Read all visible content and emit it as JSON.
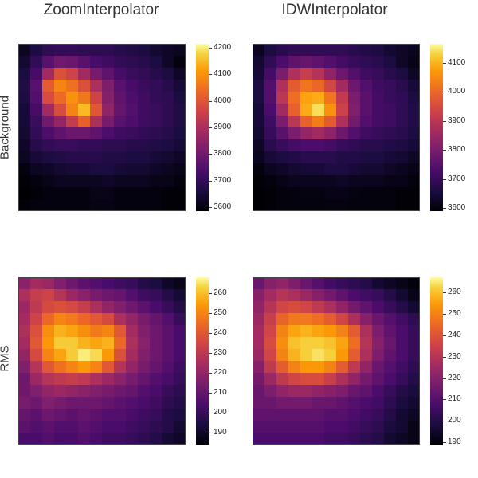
{
  "column_titles": [
    "ZoomInterpolator",
    "IDWInterpolator"
  ],
  "row_labels": [
    "Background",
    "RMS"
  ],
  "chart_data": [
    {
      "type": "heatmap",
      "title": "ZoomInterpolator",
      "ylabel": "Background",
      "colormap": "inferno",
      "colorbar": {
        "range": [
          3585,
          4215
        ],
        "ticks": [
          3600,
          3700,
          3800,
          3900,
          4000,
          4100,
          4200
        ]
      },
      "values": [
        [
          3620,
          3660,
          3690,
          3700,
          3700,
          3690,
          3690,
          3690,
          3680,
          3670,
          3660,
          3640,
          3630,
          3620
        ],
        [
          3640,
          3700,
          3760,
          3800,
          3790,
          3760,
          3730,
          3720,
          3700,
          3690,
          3680,
          3660,
          3630,
          3600
        ],
        [
          3660,
          3730,
          3880,
          3990,
          3960,
          3880,
          3810,
          3770,
          3730,
          3710,
          3700,
          3680,
          3660,
          3630
        ],
        [
          3670,
          3760,
          4010,
          4080,
          4050,
          3990,
          3900,
          3820,
          3760,
          3730,
          3710,
          3700,
          3680,
          3650
        ],
        [
          3660,
          3750,
          3980,
          4040,
          4100,
          4060,
          3960,
          3830,
          3770,
          3740,
          3720,
          3700,
          3690,
          3660
        ],
        [
          3650,
          3730,
          3880,
          3980,
          4080,
          4150,
          4000,
          3850,
          3780,
          3750,
          3720,
          3710,
          3690,
          3670
        ],
        [
          3650,
          3710,
          3800,
          3860,
          3940,
          4020,
          3900,
          3810,
          3760,
          3740,
          3720,
          3710,
          3690,
          3670
        ],
        [
          3640,
          3700,
          3740,
          3770,
          3790,
          3790,
          3770,
          3740,
          3720,
          3710,
          3700,
          3690,
          3680,
          3660
        ],
        [
          3630,
          3680,
          3700,
          3710,
          3710,
          3700,
          3700,
          3690,
          3690,
          3680,
          3680,
          3670,
          3660,
          3650
        ],
        [
          3620,
          3650,
          3660,
          3670,
          3680,
          3680,
          3680,
          3670,
          3670,
          3660,
          3660,
          3650,
          3640,
          3630
        ],
        [
          3600,
          3620,
          3630,
          3640,
          3650,
          3650,
          3660,
          3660,
          3650,
          3640,
          3640,
          3630,
          3620,
          3610
        ],
        [
          3590,
          3600,
          3610,
          3620,
          3620,
          3620,
          3620,
          3630,
          3620,
          3620,
          3620,
          3610,
          3610,
          3600
        ],
        [
          3585,
          3590,
          3600,
          3600,
          3600,
          3600,
          3610,
          3610,
          3600,
          3600,
          3600,
          3600,
          3590,
          3590
        ],
        [
          3590,
          3595,
          3600,
          3600,
          3600,
          3600,
          3605,
          3605,
          3600,
          3600,
          3600,
          3600,
          3590,
          3590
        ]
      ]
    },
    {
      "type": "heatmap",
      "title": "IDWInterpolator",
      "ylabel": "",
      "colormap": "inferno",
      "colorbar": {
        "range": [
          3590,
          4165
        ],
        "ticks": [
          3600,
          3700,
          3800,
          3900,
          4000,
          4100
        ]
      },
      "values": [
        [
          3620,
          3660,
          3680,
          3690,
          3690,
          3690,
          3690,
          3690,
          3680,
          3670,
          3660,
          3640,
          3630,
          3620
        ],
        [
          3640,
          3690,
          3730,
          3760,
          3770,
          3760,
          3740,
          3720,
          3700,
          3690,
          3680,
          3660,
          3630,
          3610
        ],
        [
          3650,
          3720,
          3800,
          3880,
          3920,
          3890,
          3830,
          3780,
          3740,
          3710,
          3700,
          3680,
          3660,
          3630
        ],
        [
          3660,
          3740,
          3880,
          3980,
          4020,
          4000,
          3940,
          3860,
          3780,
          3740,
          3710,
          3700,
          3680,
          3650
        ],
        [
          3660,
          3740,
          3900,
          4010,
          4080,
          4090,
          4020,
          3910,
          3800,
          3750,
          3720,
          3700,
          3690,
          3660
        ],
        [
          3650,
          3730,
          3860,
          3990,
          4090,
          4140,
          4060,
          3930,
          3810,
          3750,
          3720,
          3710,
          3690,
          3670
        ],
        [
          3650,
          3710,
          3800,
          3900,
          3990,
          4030,
          3980,
          3880,
          3790,
          3740,
          3720,
          3710,
          3690,
          3670
        ],
        [
          3640,
          3700,
          3750,
          3800,
          3840,
          3860,
          3830,
          3780,
          3740,
          3710,
          3700,
          3690,
          3680,
          3660
        ],
        [
          3630,
          3680,
          3700,
          3720,
          3730,
          3730,
          3720,
          3700,
          3690,
          3680,
          3680,
          3670,
          3660,
          3650
        ],
        [
          3620,
          3650,
          3660,
          3670,
          3680,
          3680,
          3680,
          3670,
          3670,
          3660,
          3660,
          3650,
          3640,
          3630
        ],
        [
          3600,
          3620,
          3630,
          3640,
          3650,
          3650,
          3660,
          3660,
          3650,
          3640,
          3640,
          3630,
          3620,
          3610
        ],
        [
          3595,
          3600,
          3610,
          3620,
          3620,
          3620,
          3620,
          3630,
          3620,
          3620,
          3620,
          3610,
          3610,
          3600
        ],
        [
          3590,
          3595,
          3600,
          3600,
          3605,
          3605,
          3610,
          3610,
          3605,
          3600,
          3600,
          3600,
          3595,
          3595
        ],
        [
          3590,
          3595,
          3600,
          3600,
          3600,
          3600,
          3605,
          3605,
          3600,
          3600,
          3600,
          3600,
          3595,
          3595
        ]
      ]
    },
    {
      "type": "heatmap",
      "title": "",
      "ylabel": "RMS",
      "colormap": "inferno",
      "colorbar": {
        "range": [
          184,
          268
        ],
        "ticks": [
          190,
          200,
          210,
          220,
          230,
          240,
          250,
          260
        ]
      },
      "values": [
        [
          218,
          224,
          222,
          216,
          212,
          208,
          206,
          204,
          202,
          200,
          196,
          194,
          190,
          188
        ],
        [
          226,
          232,
          234,
          228,
          222,
          218,
          214,
          212,
          210,
          206,
          202,
          200,
          196,
          192
        ],
        [
          222,
          230,
          236,
          238,
          236,
          232,
          226,
          220,
          216,
          212,
          208,
          204,
          200,
          196
        ],
        [
          224,
          234,
          244,
          250,
          248,
          244,
          240,
          236,
          226,
          220,
          214,
          210,
          206,
          200
        ],
        [
          226,
          238,
          252,
          258,
          256,
          252,
          248,
          250,
          240,
          224,
          216,
          212,
          208,
          204
        ],
        [
          224,
          240,
          254,
          262,
          262,
          258,
          256,
          258,
          244,
          226,
          218,
          212,
          208,
          204
        ],
        [
          220,
          236,
          250,
          256,
          262,
          266,
          264,
          254,
          238,
          224,
          216,
          212,
          208,
          204
        ],
        [
          216,
          228,
          240,
          246,
          250,
          254,
          250,
          240,
          228,
          220,
          214,
          210,
          206,
          202
        ],
        [
          212,
          222,
          228,
          230,
          232,
          230,
          226,
          222,
          218,
          214,
          210,
          206,
          204,
          200
        ],
        [
          212,
          216,
          220,
          222,
          220,
          218,
          216,
          214,
          212,
          210,
          206,
          204,
          200,
          198
        ],
        [
          214,
          212,
          216,
          214,
          212,
          212,
          212,
          210,
          208,
          206,
          204,
          202,
          198,
          196
        ],
        [
          210,
          208,
          212,
          210,
          208,
          210,
          208,
          206,
          206,
          204,
          202,
          200,
          196,
          194
        ],
        [
          208,
          206,
          208,
          206,
          206,
          208,
          206,
          204,
          204,
          202,
          200,
          198,
          196,
          192
        ],
        [
          204,
          204,
          206,
          204,
          204,
          206,
          204,
          202,
          202,
          200,
          198,
          196,
          192,
          190
        ]
      ]
    },
    {
      "type": "heatmap",
      "title": "",
      "ylabel": "",
      "colormap": "inferno",
      "colorbar": {
        "range": [
          189,
          267
        ],
        "ticks": [
          190,
          200,
          210,
          220,
          230,
          240,
          250,
          260
        ]
      },
      "values": [
        [
          214,
          220,
          222,
          218,
          214,
          210,
          206,
          204,
          202,
          200,
          196,
          194,
          192,
          190
        ],
        [
          220,
          226,
          230,
          228,
          224,
          220,
          216,
          212,
          208,
          206,
          204,
          200,
          196,
          192
        ],
        [
          222,
          230,
          236,
          238,
          236,
          232,
          228,
          222,
          216,
          212,
          208,
          204,
          200,
          196
        ],
        [
          224,
          234,
          244,
          248,
          248,
          246,
          242,
          236,
          228,
          220,
          214,
          210,
          206,
          202
        ],
        [
          226,
          236,
          250,
          256,
          258,
          256,
          254,
          250,
          242,
          228,
          218,
          212,
          208,
          204
        ],
        [
          226,
          238,
          252,
          260,
          262,
          262,
          260,
          256,
          246,
          230,
          220,
          214,
          208,
          204
        ],
        [
          224,
          236,
          250,
          258,
          262,
          264,
          262,
          254,
          242,
          228,
          218,
          212,
          208,
          204
        ],
        [
          220,
          232,
          242,
          250,
          254,
          254,
          250,
          242,
          232,
          222,
          214,
          210,
          206,
          202
        ],
        [
          216,
          224,
          232,
          236,
          238,
          238,
          234,
          228,
          222,
          216,
          212,
          208,
          204,
          200
        ],
        [
          214,
          218,
          222,
          224,
          224,
          222,
          220,
          218,
          214,
          212,
          208,
          204,
          200,
          198
        ],
        [
          214,
          214,
          216,
          216,
          216,
          214,
          214,
          212,
          210,
          208,
          206,
          202,
          198,
          196
        ],
        [
          212,
          212,
          212,
          212,
          212,
          212,
          210,
          210,
          208,
          206,
          204,
          200,
          196,
          194
        ],
        [
          210,
          210,
          210,
          210,
          210,
          210,
          208,
          208,
          206,
          204,
          202,
          198,
          196,
          192
        ],
        [
          208,
          208,
          208,
          208,
          208,
          208,
          206,
          206,
          204,
          202,
          200,
          196,
          194,
          192
        ]
      ]
    }
  ]
}
